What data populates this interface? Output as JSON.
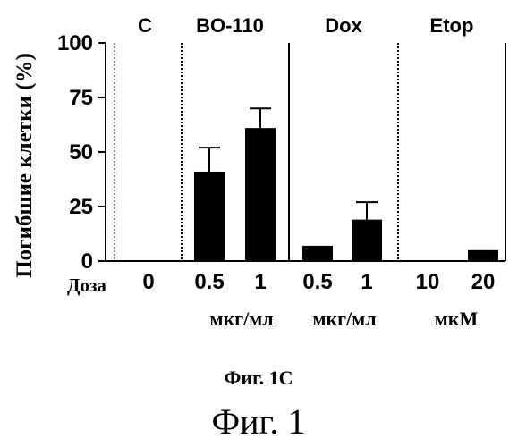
{
  "chart_data": {
    "type": "bar",
    "ylabel": "Погибшие клетки (%)",
    "ylim": [
      0,
      100
    ],
    "yticks": [
      "0",
      "25",
      "50",
      "75",
      "100"
    ],
    "dose_label": "Доза",
    "groups": [
      {
        "name": "C",
        "unit": "",
        "doses": [
          {
            "label": "0",
            "value": 0,
            "error": 0
          }
        ]
      },
      {
        "name": "BO-110",
        "unit": "мкг/мл",
        "doses": [
          {
            "label": "0.5",
            "value": 41,
            "error": 11
          },
          {
            "label": "1",
            "value": 61,
            "error": 9
          }
        ]
      },
      {
        "name": "Dox",
        "unit": "мкг/мл",
        "doses": [
          {
            "label": "0.5",
            "value": 7,
            "error": 0
          },
          {
            "label": "1",
            "value": 19,
            "error": 8
          }
        ]
      },
      {
        "name": "Etop",
        "unit": "мкМ",
        "doses": [
          {
            "label": "10",
            "value": 0,
            "error": 0
          },
          {
            "label": "20",
            "value": 5,
            "error": 0
          }
        ]
      }
    ],
    "grid": false,
    "colors": {
      "bar": "#000000",
      "divider_dotted": "#000000",
      "divider_solid": "#000000"
    }
  },
  "captions": {
    "figure_sub": "Фиг. 1С",
    "figure_main": "Фиг. 1"
  }
}
